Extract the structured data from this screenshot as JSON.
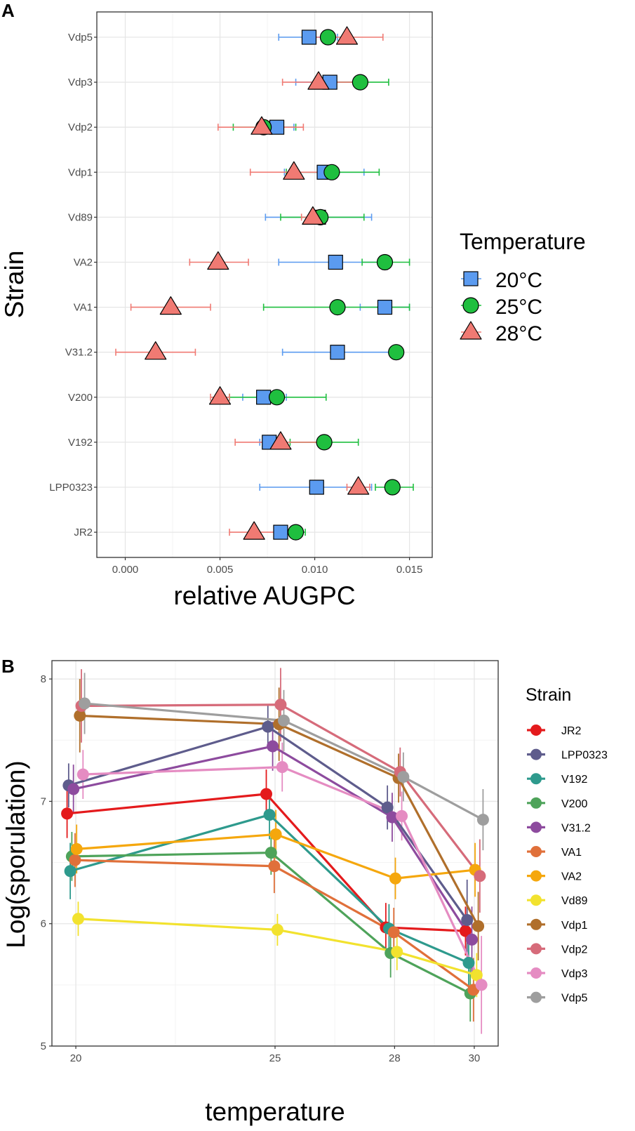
{
  "colors": {
    "t20": "#5b9bf0",
    "t25": "#1fbf3f",
    "t28": "#f07a73",
    "grid_major": "#e6e6e6",
    "grid_minor": "#f3f3f3",
    "axis_text": "#4d4d4d",
    "panel_border": "#333333"
  },
  "chart_data": [
    {
      "panel_label": "A",
      "type": "scatter",
      "orientation": "horizontal",
      "xlabel": "relative AUGPC",
      "ylabel": "Strain",
      "xlim": [
        -0.0015,
        0.0162
      ],
      "x_ticks": [
        0.0,
        0.005,
        0.01,
        0.015
      ],
      "x_tick_labels": [
        "0.000",
        "0.005",
        "0.010",
        "0.015"
      ],
      "categories": [
        "Vdp5",
        "Vdp3",
        "Vdp2",
        "Vdp1",
        "Vd89",
        "VA2",
        "VA1",
        "V31.2",
        "V200",
        "V192",
        "LPP0323",
        "JR2"
      ],
      "legend": {
        "title": "Temperature",
        "position": "right"
      },
      "series": [
        {
          "name": "20°C",
          "marker": "square",
          "color_key": "t20",
          "values": [
            0.0097,
            0.0108,
            0.008,
            0.0105,
            0.0102,
            0.0111,
            0.0137,
            0.0112,
            0.0073,
            0.0076,
            0.0101,
            0.0082
          ],
          "err": [
            [
              0.0081,
              0.0112
            ],
            [
              0.009,
              0.0126
            ],
            [
              0.0071,
              0.0089
            ],
            [
              0.0084,
              0.0126
            ],
            [
              0.0074,
              0.013
            ],
            [
              0.0081,
              0.014
            ],
            [
              0.0124,
              0.015
            ],
            [
              0.0083,
              0.0142
            ],
            [
              0.0062,
              0.0085
            ],
            [
              0.0071,
              0.0081
            ],
            [
              0.0071,
              0.013
            ],
            [
              0.0082,
              0.0082
            ]
          ]
        },
        {
          "name": "25°C",
          "marker": "circle",
          "color_key": "t25",
          "values": [
            0.0107,
            0.0124,
            0.0073,
            0.0109,
            0.0103,
            0.0137,
            0.0112,
            0.0143,
            0.008,
            0.0105,
            0.0141,
            0.009
          ],
          "err": [
            [
              0.0107,
              0.0107
            ],
            [
              0.0109,
              0.0139
            ],
            [
              0.0057,
              0.009
            ],
            [
              0.0085,
              0.0134
            ],
            [
              0.0082,
              0.0126
            ],
            [
              0.0125,
              0.015
            ],
            [
              0.0073,
              0.015
            ],
            [
              0.0143,
              0.0143
            ],
            [
              0.0055,
              0.0106
            ],
            [
              0.0087,
              0.0123
            ],
            [
              0.0132,
              0.0152
            ],
            [
              0.0085,
              0.0095
            ]
          ]
        },
        {
          "name": "28°C",
          "marker": "triangle",
          "color_key": "t28",
          "values": [
            0.0117,
            0.0102,
            0.0072,
            0.0089,
            0.0099,
            0.0049,
            0.0024,
            0.0016,
            0.005,
            0.0082,
            0.0123,
            0.0068
          ],
          "err": [
            [
              0.0098,
              0.0136
            ],
            [
              0.0083,
              0.0121
            ],
            [
              0.0049,
              0.0094
            ],
            [
              0.0066,
              0.0112
            ],
            [
              0.0093,
              0.0106
            ],
            [
              0.0034,
              0.0065
            ],
            [
              0.0003,
              0.0045
            ],
            [
              -0.0005,
              0.0037
            ],
            [
              0.0045,
              0.0055
            ],
            [
              0.0058,
              0.0106
            ],
            [
              0.0117,
              0.0129
            ],
            [
              0.0055,
              0.0081
            ]
          ]
        }
      ]
    },
    {
      "panel_label": "B",
      "type": "line",
      "xlabel": "temperature",
      "ylabel": "Log(sporulation)",
      "x": [
        20,
        25,
        28,
        30
      ],
      "xlim": [
        19.4,
        30.6
      ],
      "ylim": [
        5,
        8.15
      ],
      "x_ticks": [
        20,
        25,
        28,
        30
      ],
      "x_tick_labels": [
        "20",
        "25",
        "28",
        "30"
      ],
      "y_ticks": [
        5,
        6,
        7,
        8
      ],
      "y_tick_labels": [
        "5",
        "6",
        "7",
        "8"
      ],
      "legend": {
        "title": "Strain",
        "position": "right"
      },
      "series": [
        {
          "name": "JR2",
          "color": "#e41a1c",
          "values": [
            6.9,
            7.06,
            5.97,
            5.94
          ],
          "err": [
            [
              6.7,
              7.1
            ],
            [
              6.86,
              7.26
            ],
            [
              5.77,
              6.17
            ],
            [
              5.74,
              6.14
            ]
          ]
        },
        {
          "name": "LPP0323",
          "color": "#5e5c8c",
          "values": [
            7.13,
            7.61,
            6.95,
            6.03
          ],
          "err": [
            [
              6.95,
              7.31
            ],
            [
              7.43,
              7.79
            ],
            [
              6.77,
              7.13
            ],
            [
              5.7,
              6.36
            ]
          ]
        },
        {
          "name": "V192",
          "color": "#2e9a8d",
          "values": [
            6.43,
            6.89,
            5.96,
            5.68
          ],
          "err": [
            [
              6.2,
              6.66
            ],
            [
              6.69,
              7.09
            ],
            [
              5.76,
              6.16
            ],
            [
              5.48,
              5.88
            ]
          ]
        },
        {
          "name": "V200",
          "color": "#4ea35a",
          "values": [
            6.55,
            6.58,
            5.76,
            5.43
          ],
          "err": [
            [
              6.35,
              6.75
            ],
            [
              6.4,
              6.76
            ],
            [
              5.56,
              5.96
            ],
            [
              5.2,
              5.66
            ]
          ]
        },
        {
          "name": "V31.2",
          "color": "#8d4b9e",
          "values": [
            7.1,
            7.45,
            6.87,
            5.87
          ],
          "err": [
            [
              6.9,
              7.3
            ],
            [
              7.25,
              7.65
            ],
            [
              6.67,
              7.07
            ],
            [
              5.6,
              6.14
            ]
          ]
        },
        {
          "name": "VA1",
          "color": "#e0703a",
          "values": [
            6.52,
            6.47,
            5.93,
            5.46
          ],
          "err": [
            [
              6.3,
              6.74
            ],
            [
              6.25,
              6.69
            ],
            [
              5.73,
              6.13
            ],
            [
              5.2,
              5.72
            ]
          ]
        },
        {
          "name": "VA2",
          "color": "#f5a70d",
          "values": [
            6.61,
            6.73,
            6.37,
            6.44
          ],
          "err": [
            [
              6.41,
              6.81
            ],
            [
              6.53,
              6.93
            ],
            [
              6.2,
              6.54
            ],
            [
              6.22,
              6.66
            ]
          ]
        },
        {
          "name": "Vd89",
          "color": "#f2e22e",
          "values": [
            6.04,
            5.95,
            5.77,
            5.58
          ],
          "err": [
            [
              5.9,
              6.18
            ],
            [
              5.82,
              6.08
            ],
            [
              5.62,
              5.92
            ],
            [
              5.4,
              5.76
            ]
          ]
        },
        {
          "name": "Vdp1",
          "color": "#b06f2b",
          "values": [
            7.7,
            7.63,
            7.19,
            5.98
          ],
          "err": [
            [
              7.4,
              8.0
            ],
            [
              7.33,
              7.93
            ],
            [
              6.99,
              7.39
            ],
            [
              5.7,
              6.26
            ]
          ]
        },
        {
          "name": "Vdp2",
          "color": "#d66b7a",
          "values": [
            7.78,
            7.79,
            7.24,
            6.39
          ],
          "err": [
            [
              7.48,
              8.08
            ],
            [
              7.49,
              8.09
            ],
            [
              7.04,
              7.44
            ],
            [
              6.09,
              6.69
            ]
          ]
        },
        {
          "name": "Vdp3",
          "color": "#e58cc2",
          "values": [
            7.22,
            7.28,
            6.88,
            5.5
          ],
          "err": [
            [
              7.02,
              7.42
            ],
            [
              7.08,
              7.48
            ],
            [
              6.68,
              7.08
            ],
            [
              5.1,
              5.9
            ]
          ]
        },
        {
          "name": "Vdp5",
          "color": "#9e9e9e",
          "values": [
            7.8,
            7.66,
            7.2,
            6.85
          ],
          "err": [
            [
              7.55,
              8.05
            ],
            [
              7.41,
              7.91
            ],
            [
              7.0,
              7.4
            ],
            [
              6.6,
              7.1
            ]
          ]
        }
      ]
    }
  ]
}
